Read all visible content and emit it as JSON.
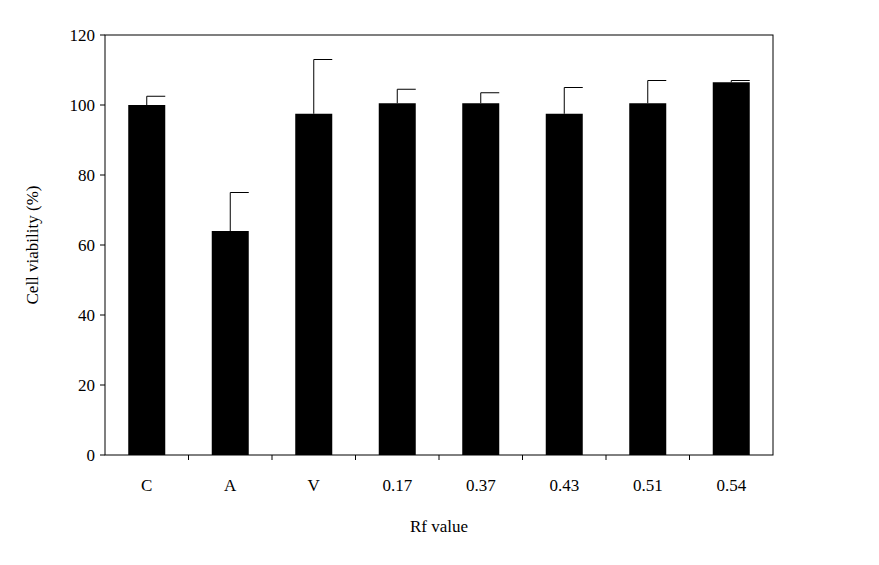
{
  "chart_data": {
    "type": "bar",
    "categories": [
      "C",
      "A",
      "V",
      "0.17",
      "0.37",
      "0.43",
      "0.51",
      "0.54"
    ],
    "values": [
      100,
      64,
      97.5,
      100.5,
      100.5,
      97.5,
      100.5,
      106.5
    ],
    "errors": [
      2.5,
      11,
      15.5,
      4,
      3,
      7.5,
      6.5,
      0.5
    ],
    "color": "#000000",
    "ylim": [
      0,
      120
    ],
    "yticks": [
      0,
      20,
      40,
      60,
      80,
      100,
      120
    ],
    "x_label": "Rf value",
    "y_label": "Cell viability (%)",
    "grid": false
  }
}
